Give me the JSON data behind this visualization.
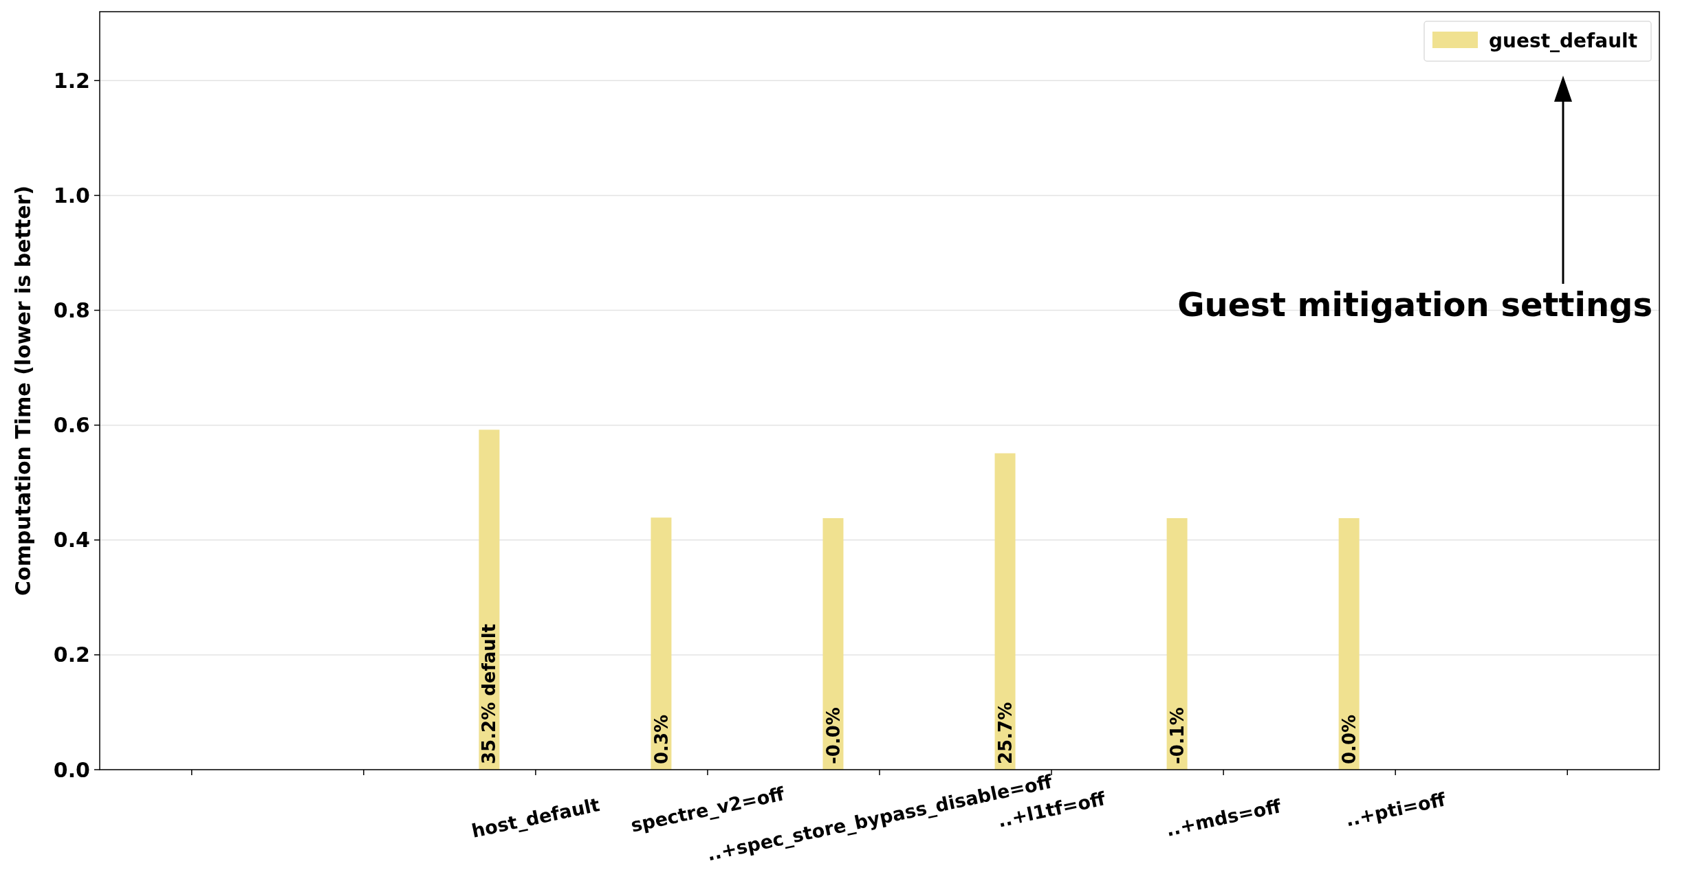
{
  "chart_data": {
    "type": "bar",
    "ylabel": "Computation Time (lower is better)",
    "categories": [
      null,
      null,
      "host_default",
      "spectre_v2=off",
      "..+spec_store_bypass_disable=off",
      "..+l1tf=off",
      "..+mds=off",
      "..+pti=off",
      null
    ],
    "series": [
      {
        "name": "guest_default",
        "color": "#f0e190",
        "values": [
          null,
          null,
          0.592,
          0.439,
          0.438,
          0.551,
          0.438,
          0.438,
          null
        ]
      }
    ],
    "ylim": [
      0,
      1.32
    ],
    "yticks": [
      {
        "value": 0,
        "label": "0.0"
      },
      {
        "value": 0.2,
        "label": "0.2"
      },
      {
        "value": 0.4,
        "label": "0.4"
      },
      {
        "value": 0.6,
        "label": "0.6"
      },
      {
        "value": 0.8,
        "label": "0.8"
      },
      {
        "value": 1,
        "label": "1.0"
      },
      {
        "value": 1.2,
        "label": "1.2"
      }
    ],
    "grid": "y",
    "legend": "top right",
    "annotations": [
      "Guest mitigation settings",
      "35.2% default",
      "0.3%",
      "-0.0%",
      "25.7%",
      "-0.1%",
      "0.0%"
    ]
  }
}
